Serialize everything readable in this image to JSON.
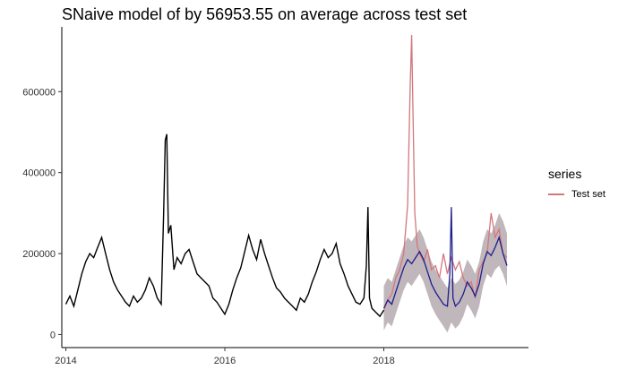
{
  "chart_data": {
    "type": "line",
    "title": "SNaive model of by 56953.55 on average across test set",
    "xlabel": "",
    "ylabel": "",
    "xlim": [
      2013.96,
      2019.82
    ],
    "ylim": [
      -30000,
      760000
    ],
    "x_ticks": [
      2014,
      2016,
      2018
    ],
    "x_tick_labels": [
      "2014",
      "2016",
      "2018"
    ],
    "y_ticks": [
      0,
      200000,
      400000,
      600000
    ],
    "y_tick_labels": [
      "0",
      "200000",
      "400000",
      "600000"
    ],
    "grid": false,
    "legend": {
      "title": "series",
      "position": "right",
      "entries": [
        {
          "name": "Test set",
          "color": "#d4767c"
        }
      ]
    },
    "series": [
      {
        "role": "history",
        "color": "#000000",
        "x": [
          2014.0,
          2014.05,
          2014.1,
          2014.15,
          2014.2,
          2014.25,
          2014.3,
          2014.35,
          2014.4,
          2014.45,
          2014.5,
          2014.55,
          2014.6,
          2014.65,
          2014.7,
          2014.75,
          2014.8,
          2014.85,
          2014.9,
          2014.95,
          2015.0,
          2015.05,
          2015.1,
          2015.15,
          2015.2,
          2015.23,
          2015.25,
          2015.27,
          2015.29,
          2015.32,
          2015.36,
          2015.4,
          2015.45,
          2015.5,
          2015.55,
          2015.6,
          2015.65,
          2015.7,
          2015.75,
          2015.8,
          2015.85,
          2015.9,
          2015.95,
          2016.0,
          2016.05,
          2016.1,
          2016.15,
          2016.2,
          2016.25,
          2016.3,
          2016.35,
          2016.4,
          2016.45,
          2016.5,
          2016.55,
          2016.6,
          2016.65,
          2016.7,
          2016.75,
          2016.8,
          2016.85,
          2016.9,
          2016.95,
          2017.0,
          2017.05,
          2017.1,
          2017.15,
          2017.2,
          2017.25,
          2017.3,
          2017.35,
          2017.4,
          2017.45,
          2017.5,
          2017.55,
          2017.6,
          2017.65,
          2017.7,
          2017.75,
          2017.78,
          2017.8,
          2017.82,
          2017.85,
          2017.9,
          2017.95,
          2018.0
        ],
        "y": [
          75000,
          95000,
          70000,
          110000,
          150000,
          180000,
          200000,
          190000,
          215000,
          240000,
          200000,
          160000,
          130000,
          110000,
          95000,
          80000,
          70000,
          95000,
          80000,
          90000,
          110000,
          140000,
          120000,
          90000,
          75000,
          300000,
          480000,
          495000,
          250000,
          270000,
          160000,
          190000,
          175000,
          200000,
          210000,
          180000,
          150000,
          140000,
          130000,
          120000,
          90000,
          80000,
          65000,
          50000,
          75000,
          110000,
          140000,
          165000,
          205000,
          245000,
          210000,
          185000,
          235000,
          200000,
          170000,
          140000,
          115000,
          105000,
          90000,
          80000,
          70000,
          60000,
          90000,
          80000,
          100000,
          130000,
          155000,
          185000,
          210000,
          190000,
          200000,
          225000,
          175000,
          150000,
          120000,
          100000,
          80000,
          75000,
          90000,
          170000,
          315000,
          90000,
          65000,
          55000,
          45000,
          60000
        ]
      },
      {
        "role": "forecast-interval",
        "color": "#b5aab0",
        "x": [
          2018.0,
          2018.05,
          2018.1,
          2018.15,
          2018.2,
          2018.25,
          2018.3,
          2018.35,
          2018.4,
          2018.45,
          2018.5,
          2018.55,
          2018.6,
          2018.65,
          2018.7,
          2018.75,
          2018.8,
          2018.85,
          2018.9,
          2018.95,
          2019.0,
          2019.05,
          2019.1,
          2019.15,
          2019.2,
          2019.25,
          2019.3,
          2019.35,
          2019.4,
          2019.45,
          2019.5,
          2019.55
        ],
        "upper": [
          120000,
          140000,
          130000,
          160000,
          190000,
          220000,
          240000,
          230000,
          245000,
          260000,
          240000,
          210000,
          180000,
          160000,
          145000,
          130000,
          115000,
          140000,
          125000,
          135000,
          155000,
          185000,
          170000,
          150000,
          180000,
          230000,
          260000,
          250000,
          270000,
          300000,
          280000,
          250000
        ],
        "lower": [
          10000,
          30000,
          20000,
          50000,
          80000,
          110000,
          130000,
          120000,
          135000,
          150000,
          130000,
          100000,
          70000,
          50000,
          35000,
          20000,
          5000,
          30000,
          15000,
          25000,
          45000,
          75000,
          60000,
          40000,
          70000,
          120000,
          150000,
          140000,
          160000,
          170000,
          150000,
          120000
        ]
      },
      {
        "name": "Test set",
        "role": "test",
        "color": "#d4767c",
        "x": [
          2018.0,
          2018.05,
          2018.1,
          2018.15,
          2018.2,
          2018.25,
          2018.3,
          2018.33,
          2018.35,
          2018.37,
          2018.39,
          2018.42,
          2018.45,
          2018.5,
          2018.55,
          2018.6,
          2018.65,
          2018.7,
          2018.75,
          2018.8,
          2018.85,
          2018.9,
          2018.95,
          2019.0,
          2019.05,
          2019.1,
          2019.15,
          2019.2,
          2019.25,
          2019.3,
          2019.35,
          2019.4,
          2019.45,
          2019.5,
          2019.55
        ],
        "y": [
          60000,
          85000,
          100000,
          140000,
          160000,
          200000,
          320000,
          600000,
          740000,
          520000,
          300000,
          220000,
          200000,
          180000,
          210000,
          160000,
          170000,
          140000,
          200000,
          150000,
          190000,
          160000,
          180000,
          140000,
          120000,
          130000,
          90000,
          160000,
          180000,
          200000,
          300000,
          240000,
          260000,
          200000,
          190000
        ]
      },
      {
        "role": "forecast",
        "color": "#1e1e8c",
        "x": [
          2018.0,
          2018.05,
          2018.1,
          2018.15,
          2018.2,
          2018.25,
          2018.3,
          2018.35,
          2018.4,
          2018.45,
          2018.5,
          2018.55,
          2018.6,
          2018.65,
          2018.7,
          2018.75,
          2018.8,
          2018.83,
          2018.85,
          2018.87,
          2018.9,
          2018.95,
          2019.0,
          2019.05,
          2019.1,
          2019.15,
          2019.2,
          2019.25,
          2019.3,
          2019.35,
          2019.4,
          2019.45,
          2019.5,
          2019.55
        ],
        "y": [
          65000,
          85000,
          75000,
          105000,
          135000,
          165000,
          185000,
          175000,
          190000,
          205000,
          185000,
          155000,
          125000,
          105000,
          90000,
          75000,
          70000,
          150000,
          315000,
          90000,
          70000,
          80000,
          100000,
          130000,
          115000,
          95000,
          125000,
          175000,
          205000,
          195000,
          215000,
          240000,
          200000,
          170000
        ]
      }
    ]
  }
}
